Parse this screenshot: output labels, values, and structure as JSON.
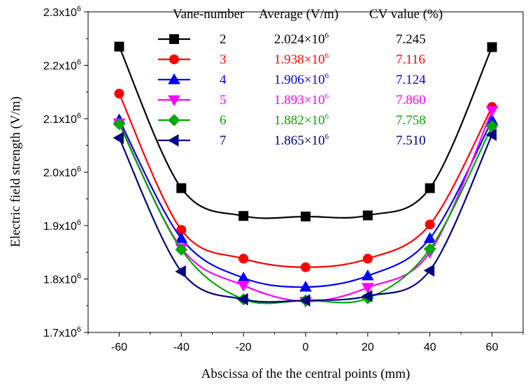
{
  "chart_data": {
    "type": "line",
    "xlabel": "Abscissa of the the central points (mm)",
    "ylabel": "Electric field strength (V/m)",
    "x": [
      -60,
      -40,
      -20,
      0,
      20,
      40,
      60
    ],
    "xlim": [
      -70,
      70
    ],
    "xticks": [
      -60,
      -40,
      -20,
      0,
      20,
      40,
      60
    ],
    "x_tick_labels": [
      "-60",
      "-40",
      "-20",
      "0",
      "20",
      "40",
      "60"
    ],
    "ylim": [
      1700000,
      2300000
    ],
    "yticks": [
      1700000,
      1800000,
      1900000,
      2000000,
      2100000,
      2200000,
      2300000
    ],
    "y_tick_labels": [
      {
        "base": "1.7x10",
        "exp": "6"
      },
      {
        "base": "1.8x10",
        "exp": "6"
      },
      {
        "base": "1.9x10",
        "exp": "6"
      },
      {
        "base": "2.0x10",
        "exp": "6"
      },
      {
        "base": "2.1x10",
        "exp": "6"
      },
      {
        "base": "2.2x10",
        "exp": "6"
      },
      {
        "base": "2.3x10",
        "exp": "6"
      }
    ],
    "legend_headers": [
      "Vane-number",
      "Average (V/m)",
      "CV value (%)"
    ],
    "series": [
      {
        "name": "2",
        "marker": "square",
        "color": "#000000",
        "average_base": "2.024×10",
        "average_exp": "6",
        "cv": "7.245",
        "values": [
          2235000,
          1970000,
          1918000,
          1917000,
          1919000,
          1970000,
          2234000
        ]
      },
      {
        "name": "3",
        "marker": "circle",
        "color": "#ff0000",
        "average_base": "1.938×10",
        "average_exp": "6",
        "cv": "7.116",
        "values": [
          2147000,
          1892000,
          1838000,
          1822000,
          1838000,
          1902000,
          2122000
        ]
      },
      {
        "name": "4",
        "marker": "triangle-up",
        "color": "#0000ff",
        "average_base": "1.906×10",
        "average_exp": "6",
        "cv": "7.124",
        "values": [
          2098000,
          1876000,
          1802000,
          1785000,
          1806000,
          1876000,
          2097000
        ]
      },
      {
        "name": "5",
        "marker": "triangle-down",
        "color": "#ff00ff",
        "average_base": "1.893×10",
        "average_exp": "6",
        "cv": "7.860",
        "values": [
          2092000,
          1858000,
          1788000,
          1758000,
          1784000,
          1850000,
          2115000
        ]
      },
      {
        "name": "6",
        "marker": "diamond",
        "color": "#00aa00",
        "average_base": "1.882×10",
        "average_exp": "6",
        "cv": "7.758",
        "values": [
          2090000,
          1855000,
          1762000,
          1760000,
          1764000,
          1856000,
          2086000
        ]
      },
      {
        "name": "7",
        "marker": "triangle-left",
        "color": "#000080",
        "average_base": "1.865×10",
        "average_exp": "6",
        "cv": "7.510",
        "values": [
          2064000,
          1814000,
          1762000,
          1760000,
          1768000,
          1816000,
          2070000
        ]
      }
    ]
  }
}
